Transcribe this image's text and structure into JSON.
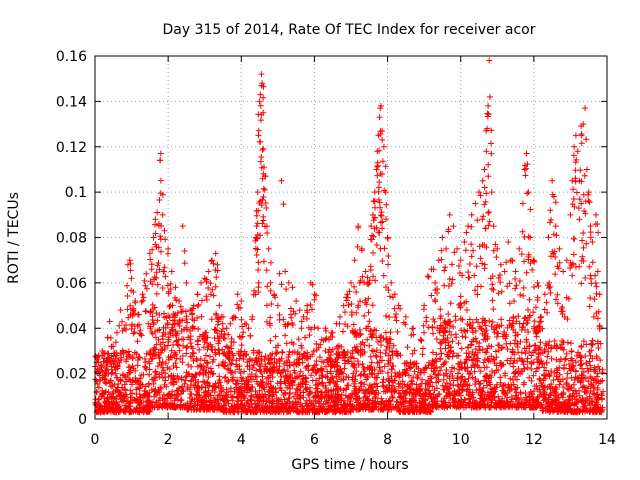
{
  "chart_data": {
    "type": "scatter",
    "title": "Day 315 of 2014, Rate Of TEC Index for receiver acor",
    "xlabel": "GPS time / hours",
    "ylabel": "ROTI / TECUs",
    "xlim": [
      0,
      14
    ],
    "ylim": [
      0,
      0.16
    ],
    "x_ticks": [
      0,
      2,
      4,
      6,
      8,
      10,
      12,
      14
    ],
    "x_tick_labels": [
      "0",
      "2",
      "4",
      "6",
      "8",
      "10",
      "12",
      "14"
    ],
    "y_ticks": [
      0,
      0.02,
      0.04,
      0.06,
      0.08,
      0.1,
      0.12,
      0.14,
      0.16
    ],
    "y_tick_labels": [
      "0",
      "0.02",
      "0.04",
      "0.06",
      "0.08",
      "0.1",
      "0.12",
      "0.14",
      "0.16"
    ],
    "grid": true,
    "marker": "plus",
    "color": "#ff0000",
    "series": [
      {
        "name": "ROTI",
        "points": [
          [
            0.05,
            0.012
          ],
          [
            0.1,
            0.028
          ],
          [
            0.2,
            0.03
          ],
          [
            0.3,
            0.025
          ],
          [
            0.35,
            0.036
          ],
          [
            0.4,
            0.043
          ],
          [
            0.5,
            0.032
          ],
          [
            0.6,
            0.038
          ],
          [
            0.7,
            0.048
          ],
          [
            0.8,
            0.04
          ],
          [
            0.9,
            0.068
          ],
          [
            0.95,
            0.07
          ],
          [
            1.0,
            0.062
          ],
          [
            1.05,
            0.056
          ],
          [
            1.1,
            0.052
          ],
          [
            1.2,
            0.046
          ],
          [
            1.3,
            0.055
          ],
          [
            1.4,
            0.064
          ],
          [
            1.5,
            0.073
          ],
          [
            1.55,
            0.066
          ],
          [
            1.6,
            0.08
          ],
          [
            1.65,
            0.088
          ],
          [
            1.7,
            0.091
          ],
          [
            1.75,
            0.086
          ],
          [
            1.78,
            0.114
          ],
          [
            1.8,
            0.117
          ],
          [
            1.85,
            0.09
          ],
          [
            1.9,
            0.083
          ],
          [
            2.0,
            0.075
          ],
          [
            2.1,
            0.065
          ],
          [
            2.2,
            0.058
          ],
          [
            2.3,
            0.052
          ],
          [
            2.4,
            0.085
          ],
          [
            2.5,
            0.06
          ],
          [
            2.6,
            0.048
          ],
          [
            2.7,
            0.05
          ],
          [
            2.8,
            0.055
          ],
          [
            2.9,
            0.06
          ],
          [
            3.0,
            0.062
          ],
          [
            3.1,
            0.065
          ],
          [
            3.2,
            0.07
          ],
          [
            3.3,
            0.073
          ],
          [
            3.35,
            0.068
          ],
          [
            3.4,
            0.05
          ],
          [
            3.5,
            0.045
          ],
          [
            3.6,
            0.04
          ],
          [
            3.7,
            0.042
          ],
          [
            3.8,
            0.045
          ],
          [
            3.9,
            0.055
          ],
          [
            4.0,
            0.052
          ],
          [
            4.1,
            0.042
          ],
          [
            4.2,
            0.04
          ],
          [
            4.3,
            0.045
          ],
          [
            4.4,
            0.08
          ],
          [
            4.42,
            0.085
          ],
          [
            4.45,
            0.1
          ],
          [
            4.47,
            0.125
          ],
          [
            4.5,
            0.14
          ],
          [
            4.52,
            0.143
          ],
          [
            4.55,
            0.152
          ],
          [
            4.57,
            0.148
          ],
          [
            4.6,
            0.135
          ],
          [
            4.62,
            0.111
          ],
          [
            4.65,
            0.107
          ],
          [
            4.7,
            0.085
          ],
          [
            4.75,
            0.075
          ],
          [
            4.8,
            0.06
          ],
          [
            4.9,
            0.055
          ],
          [
            5.0,
            0.05
          ],
          [
            5.1,
            0.105
          ],
          [
            5.2,
            0.065
          ],
          [
            5.3,
            0.06
          ],
          [
            5.4,
            0.058
          ],
          [
            5.5,
            0.052
          ],
          [
            5.6,
            0.048
          ],
          [
            5.7,
            0.045
          ],
          [
            5.8,
            0.05
          ],
          [
            5.9,
            0.06
          ],
          [
            6.0,
            0.055
          ],
          [
            6.1,
            0.04
          ],
          [
            6.2,
            0.035
          ],
          [
            6.3,
            0.04
          ],
          [
            6.4,
            0.035
          ],
          [
            6.5,
            0.038
          ],
          [
            6.6,
            0.042
          ],
          [
            6.7,
            0.045
          ],
          [
            6.8,
            0.05
          ],
          [
            6.9,
            0.055
          ],
          [
            7.0,
            0.06
          ],
          [
            7.1,
            0.07
          ],
          [
            7.2,
            0.085
          ],
          [
            7.3,
            0.075
          ],
          [
            7.4,
            0.065
          ],
          [
            7.5,
            0.06
          ],
          [
            7.55,
            0.085
          ],
          [
            7.6,
            0.09
          ],
          [
            7.65,
            0.1
          ],
          [
            7.7,
            0.11
          ],
          [
            7.72,
            0.118
          ],
          [
            7.75,
            0.125
          ],
          [
            7.78,
            0.133
          ],
          [
            7.8,
            0.137
          ],
          [
            7.82,
            0.138
          ],
          [
            7.85,
            0.127
          ],
          [
            7.9,
            0.12
          ],
          [
            7.95,
            0.1
          ],
          [
            8.0,
            0.08
          ],
          [
            8.1,
            0.06
          ],
          [
            8.2,
            0.055
          ],
          [
            8.3,
            0.05
          ],
          [
            8.5,
            0.045
          ],
          [
            8.7,
            0.04
          ],
          [
            8.9,
            0.035
          ],
          [
            9.0,
            0.05
          ],
          [
            9.1,
            0.063
          ],
          [
            9.2,
            0.066
          ],
          [
            9.3,
            0.06
          ],
          [
            9.4,
            0.07
          ],
          [
            9.5,
            0.08
          ],
          [
            9.6,
            0.075
          ],
          [
            9.7,
            0.09
          ],
          [
            9.8,
            0.085
          ],
          [
            9.9,
            0.075
          ],
          [
            10.0,
            0.07
          ],
          [
            10.1,
            0.078
          ],
          [
            10.2,
            0.085
          ],
          [
            10.3,
            0.09
          ],
          [
            10.4,
            0.095
          ],
          [
            10.5,
            0.1
          ],
          [
            10.6,
            0.105
          ],
          [
            10.65,
            0.11
          ],
          [
            10.7,
            0.118
          ],
          [
            10.72,
            0.128
          ],
          [
            10.75,
            0.138
          ],
          [
            10.78,
            0.158
          ],
          [
            10.8,
            0.142
          ],
          [
            10.85,
            0.1
          ],
          [
            10.9,
            0.085
          ],
          [
            11.0,
            0.075
          ],
          [
            11.1,
            0.068
          ],
          [
            11.2,
            0.065
          ],
          [
            11.3,
            0.078
          ],
          [
            11.4,
            0.07
          ],
          [
            11.5,
            0.065
          ],
          [
            11.6,
            0.075
          ],
          [
            11.7,
            0.095
          ],
          [
            11.75,
            0.11
          ],
          [
            11.8,
            0.117
          ],
          [
            11.85,
            0.1
          ],
          [
            11.9,
            0.08
          ],
          [
            12.0,
            0.07
          ],
          [
            12.1,
            0.06
          ],
          [
            12.2,
            0.045
          ],
          [
            12.3,
            0.055
          ],
          [
            12.4,
            0.08
          ],
          [
            12.45,
            0.092
          ],
          [
            12.5,
            0.105
          ],
          [
            12.55,
            0.098
          ],
          [
            12.6,
            0.085
          ],
          [
            12.7,
            0.075
          ],
          [
            12.8,
            0.065
          ],
          [
            12.9,
            0.07
          ],
          [
            13.0,
            0.09
          ],
          [
            13.05,
            0.105
          ],
          [
            13.1,
            0.12
          ],
          [
            13.15,
            0.125
          ],
          [
            13.2,
            0.118
          ],
          [
            13.25,
            0.105
          ],
          [
            13.3,
            0.125
          ],
          [
            13.35,
            0.13
          ],
          [
            13.4,
            0.137
          ],
          [
            13.45,
            0.11
          ],
          [
            13.5,
            0.1
          ],
          [
            13.55,
            0.085
          ],
          [
            13.6,
            0.078
          ],
          [
            13.7,
            0.09
          ],
          [
            13.75,
            0.065
          ],
          [
            13.8,
            0.055
          ]
        ],
        "background_band": {
          "description": "dense cloud of low ROTI values across the whole day",
          "segments": [
            {
              "x_start": 0.0,
              "x_end": 1.5,
              "y_min": 0.003,
              "y_max": 0.03
            },
            {
              "x_start": 1.5,
              "x_end": 2.5,
              "y_min": 0.005,
              "y_max": 0.05
            },
            {
              "x_start": 2.5,
              "x_end": 3.5,
              "y_min": 0.004,
              "y_max": 0.04
            },
            {
              "x_start": 3.5,
              "x_end": 4.8,
              "y_min": 0.003,
              "y_max": 0.03
            },
            {
              "x_start": 4.8,
              "x_end": 7.0,
              "y_min": 0.003,
              "y_max": 0.03
            },
            {
              "x_start": 7.0,
              "x_end": 8.3,
              "y_min": 0.004,
              "y_max": 0.04
            },
            {
              "x_start": 8.3,
              "x_end": 9.2,
              "y_min": 0.003,
              "y_max": 0.025
            },
            {
              "x_start": 9.2,
              "x_end": 12.2,
              "y_min": 0.005,
              "y_max": 0.045
            },
            {
              "x_start": 12.2,
              "x_end": 13.9,
              "y_min": 0.003,
              "y_max": 0.035
            }
          ]
        }
      }
    ]
  }
}
